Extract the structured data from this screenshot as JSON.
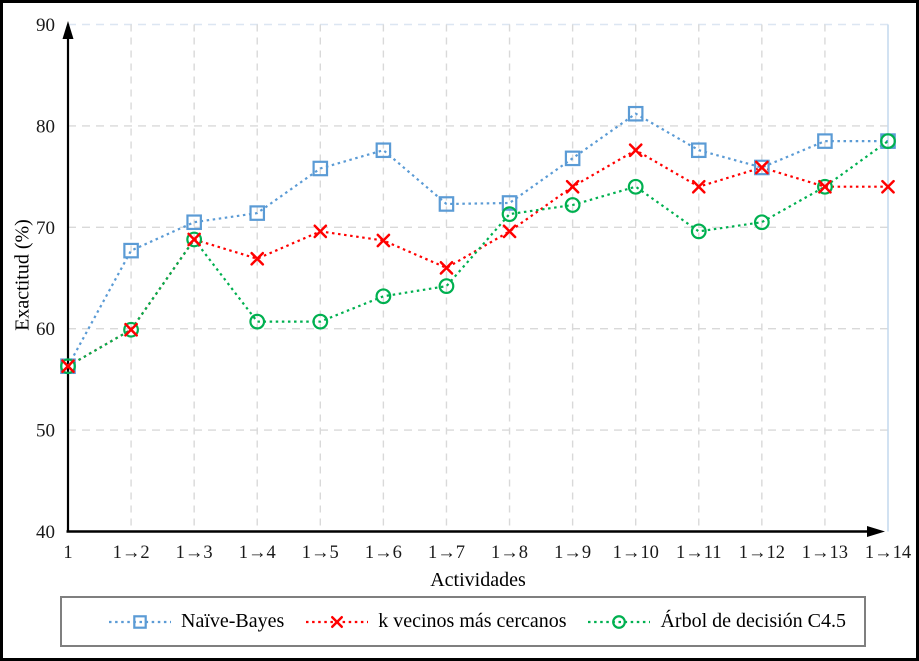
{
  "chart_data": {
    "type": "line",
    "title": "",
    "xlabel": "Actividades",
    "ylabel": "Exactitud (%)",
    "ylim": [
      40,
      90
    ],
    "yticks": [
      40,
      50,
      60,
      70,
      80,
      90
    ],
    "grid": true,
    "legend_position": "bottom",
    "categories": [
      "1",
      "1→2",
      "1→3",
      "1→4",
      "1→5",
      "1→6",
      "1→7",
      "1→8",
      "1→9",
      "1→10",
      "1→11",
      "1→12",
      "1→13",
      "1→14"
    ],
    "series": [
      {
        "name": "Naïve-Bayes",
        "color": "#5B9BD5",
        "marker": "square",
        "line_style": "dotted",
        "values": [
          56.3,
          67.7,
          70.5,
          71.4,
          75.8,
          77.6,
          72.3,
          72.4,
          76.8,
          81.2,
          77.6,
          75.9,
          78.5,
          78.5
        ]
      },
      {
        "name": "k vecinos más cercanos",
        "color": "#FF0000",
        "marker": "x",
        "line_style": "dotted",
        "values": [
          56.3,
          59.9,
          68.8,
          66.9,
          69.6,
          68.7,
          66.0,
          69.6,
          74.0,
          77.6,
          74.0,
          75.9,
          74.0,
          74.0
        ]
      },
      {
        "name": "Árbol de decisión C4.5",
        "color": "#00B050",
        "marker": "circle",
        "line_style": "dotted",
        "values": [
          56.3,
          59.9,
          68.8,
          60.7,
          60.7,
          63.2,
          64.2,
          71.3,
          72.2,
          74.0,
          69.6,
          70.5,
          74.0,
          78.5
        ]
      }
    ],
    "colors": {
      "gridline": "#D9D9D9",
      "top_border": "#DCE6F2",
      "right_border": "#C6DBEE",
      "axis": "#000000",
      "tick_label": "#1A1A1A"
    }
  }
}
